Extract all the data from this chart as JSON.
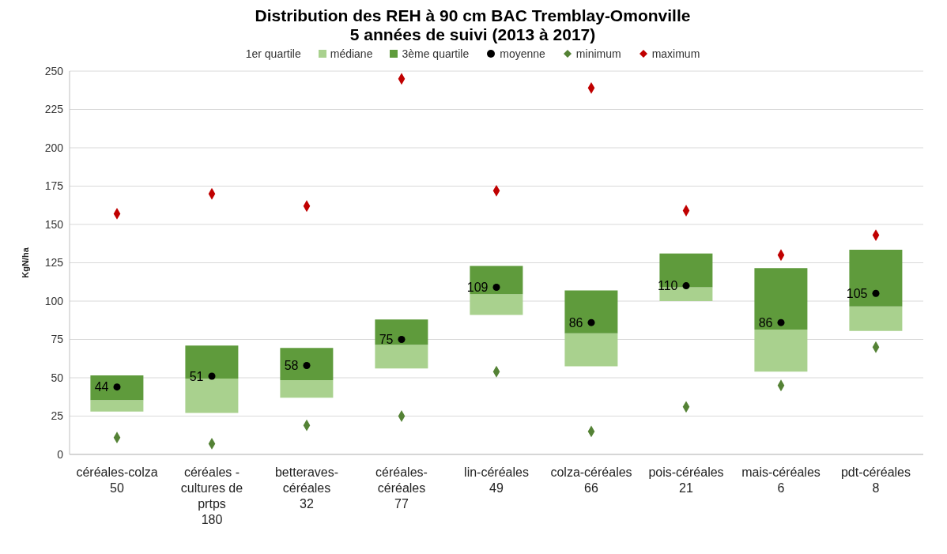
{
  "chart_data": {
    "type": "bar",
    "title": "Distribution des  REH  à 90 cm BAC Tremblay-Omonville",
    "subtitle": "5 années de suivi (2013 à 2017)",
    "ylabel": "KgN/ha",
    "categories": [
      "céréales-colza\n50",
      "céréales - cultures de prtps\n180",
      "betteraves-céréales\n32",
      "céréales-céréales\n77",
      "lin-céréales\n49",
      "colza-céréales\n66",
      "pois-céréales\n21",
      "mais-céréales\n6",
      "pdt-céréales\n8"
    ],
    "legend_title": "1er quartile",
    "ylim": [
      0,
      250
    ],
    "yticks": [
      0,
      25,
      50,
      75,
      100,
      125,
      150,
      175,
      200,
      225,
      250
    ],
    "grid": "y",
    "legend": "top",
    "series": [
      {
        "name": "médiane",
        "color": "#a9d18e",
        "base": [
          28,
          27,
          37,
          56,
          91,
          57.5,
          100,
          54,
          80.5
        ],
        "values": [
          7.5,
          22.5,
          11.5,
          15.5,
          13.5,
          21.5,
          9,
          27.5,
          16
        ]
      },
      {
        "name": "3ème quartile",
        "color": "#5f9b3c",
        "base": [
          35.5,
          49.5,
          48.5,
          71.5,
          104.5,
          79,
          109,
          81.5,
          96.5
        ],
        "values": [
          16,
          21.5,
          21,
          16.5,
          18.5,
          28,
          22,
          40,
          37
        ]
      },
      {
        "name": "moyenne",
        "type": "scatter",
        "marker": "circle",
        "color": "#000000",
        "values": [
          44,
          51,
          58,
          75,
          109,
          86,
          110,
          86,
          105
        ],
        "value_labels": [
          "44",
          "51",
          "58",
          "75",
          "109",
          "86",
          "110",
          "86",
          "105"
        ]
      },
      {
        "name": "minimum",
        "type": "scatter",
        "marker": "diamond",
        "color": "#548235",
        "values": [
          11,
          7,
          19,
          25,
          54,
          15,
          31,
          45,
          70
        ]
      },
      {
        "name": "maximum",
        "type": "scatter",
        "marker": "diamond",
        "color": "#c00000",
        "values": [
          157,
          170,
          162,
          245,
          172,
          239,
          159,
          130,
          143
        ]
      }
    ]
  }
}
